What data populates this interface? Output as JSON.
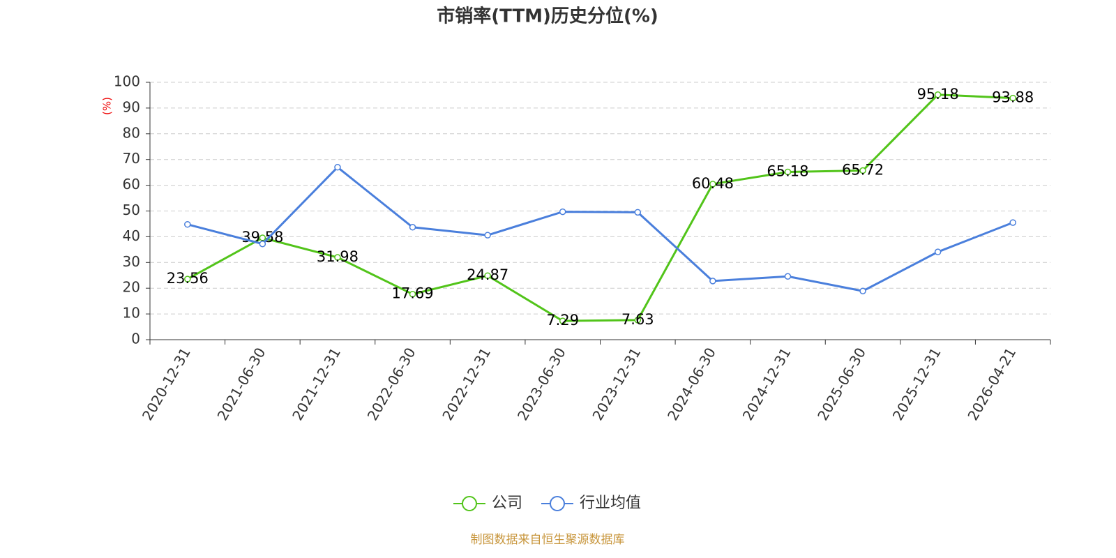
{
  "chart_data": {
    "type": "line",
    "title": "市销率(TTM)历史分位(%)",
    "y_label": "(%)",
    "categories": [
      "2020-12-31",
      "2021-06-30",
      "2021-12-31",
      "2022-06-30",
      "2022-12-31",
      "2023-06-30",
      "2023-12-31",
      "2024-06-30",
      "2024-12-31",
      "2025-06-30",
      "2025-12-31",
      "2026-04-21"
    ],
    "series": [
      {
        "name": "公司",
        "color": "#52c41a",
        "values": [
          23.56,
          39.58,
          31.98,
          17.69,
          24.87,
          7.29,
          7.63,
          60.48,
          65.18,
          65.72,
          95.18,
          93.88
        ]
      },
      {
        "name": "行业均值",
        "color": "#4a7fdc",
        "values": [
          44.8,
          37.2,
          67.0,
          43.7,
          40.6,
          49.7,
          49.5,
          22.8,
          24.6,
          18.9,
          34.1,
          45.5
        ]
      }
    ],
    "ylim": [
      0,
      100
    ],
    "yticks": [
      0,
      10,
      20,
      30,
      40,
      50,
      60,
      70,
      80,
      90,
      100
    ],
    "grid": true,
    "source": "制图数据来自恒生聚源数据库"
  }
}
